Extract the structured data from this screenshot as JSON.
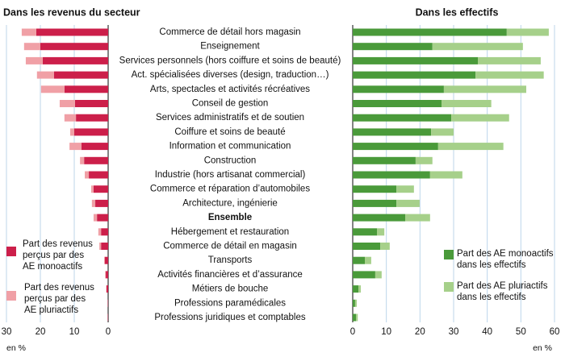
{
  "chart_data": [
    {
      "type": "bar",
      "orientation": "horizontal",
      "reversed": true,
      "stacked": true,
      "title": "Dans les revenus du secteur",
      "xlabel": "en %",
      "categories": [
        "Commerce de détail hors magasin",
        "Enseignement",
        "Services personnels (hors coiffure et soins de beauté)",
        "Act. spécialisées diverses (design, traduction…)",
        "Arts, spectacles et activités récréatives",
        "Conseil de gestion",
        "Services administratifs et de soutien",
        "Coiffure et soins de beauté",
        "Information et communication",
        "Construction",
        "Industrie (hors artisanat commercial)",
        "Commerce et réparation d’automobiles",
        "Architecture, ingénierie",
        "Ensemble",
        "Hébergement et restauration",
        "Commerce de détail en magasin",
        "Transports",
        "Activités financières et d’assurance",
        "Métiers de bouche",
        "Professions paramédicales",
        "Professions juridiques et comptables"
      ],
      "highlight_index": 13,
      "xlim": [
        30,
        0
      ],
      "xticks": [
        30,
        20,
        10,
        0
      ],
      "grid": true,
      "series": [
        {
          "name": "Part des revenus perçus par des AE monoactifs",
          "color": "#cc1f4a",
          "values": [
            21.2,
            20,
            19.3,
            16,
            12.9,
            9.8,
            9.5,
            10,
            7.9,
            7.1,
            5.7,
            4.3,
            3.8,
            3.3,
            2.1,
            2.1,
            1,
            0.7,
            0.5,
            0.1,
            0.1
          ]
        },
        {
          "name": "Part des revenus perçus par des AE pluriactifs",
          "color": "#f0a0a6",
          "values": [
            4.3,
            4.8,
            5,
            5,
            6.9,
            4.5,
            3.4,
            1.2,
            3.5,
            1.2,
            1.2,
            0.7,
            1,
            1,
            0.8,
            0.5,
            0.2,
            0.2,
            0.1,
            0,
            0
          ]
        }
      ]
    },
    {
      "type": "bar",
      "orientation": "horizontal",
      "stacked": true,
      "title": "Dans les effectifs",
      "xlabel": "en %",
      "xlim": [
        0,
        60
      ],
      "xticks": [
        0,
        10,
        20,
        30,
        40,
        50,
        60
      ],
      "grid": true,
      "series": [
        {
          "name": "Part des AE monoactifs dans les effectifs",
          "color": "#4a9a3a",
          "values": [
            45.8,
            23.7,
            37.2,
            36.5,
            27.1,
            26.4,
            29.3,
            23.3,
            25.4,
            18.7,
            23,
            13,
            13,
            15.6,
            7.2,
            8.2,
            3.6,
            6.7,
            1.7,
            0.7,
            1
          ]
        },
        {
          "name": "Part des AE pluriactifs dans les effectifs",
          "color": "#a6d08a",
          "values": [
            12.5,
            26.9,
            18.7,
            20.3,
            24.5,
            14.8,
            17.2,
            6.7,
            19.4,
            5,
            9.6,
            5.2,
            6.9,
            7.4,
            2.2,
            2.8,
            1.9,
            1.9,
            0.7,
            0.5,
            0.5
          ]
        }
      ]
    }
  ]
}
